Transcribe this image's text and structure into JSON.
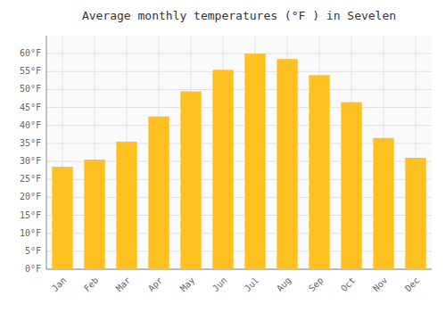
{
  "chart_data": {
    "type": "bar",
    "title": "Average monthly temperatures (°F ) in Sevelen",
    "categories": [
      "Jan",
      "Feb",
      "Mar",
      "Apr",
      "May",
      "Jun",
      "Jul",
      "Aug",
      "Sep",
      "Oct",
      "Nov",
      "Dec"
    ],
    "values": [
      28.5,
      30.5,
      35.5,
      42.5,
      49.5,
      55.5,
      60.0,
      58.5,
      54.0,
      46.5,
      36.5,
      31.0
    ],
    "color": "#FFC020",
    "ylim": [
      0,
      65
    ],
    "yticks": [
      {
        "value": 0,
        "label": "0°F"
      },
      {
        "value": 5,
        "label": "5°F"
      },
      {
        "value": 10,
        "label": "10°F"
      },
      {
        "value": 15,
        "label": "15°F"
      },
      {
        "value": 20,
        "label": "20°F"
      },
      {
        "value": 25,
        "label": "25°F"
      },
      {
        "value": 30,
        "label": "30°F"
      },
      {
        "value": 35,
        "label": "35°F"
      },
      {
        "value": 40,
        "label": "40°F"
      },
      {
        "value": 45,
        "label": "45°F"
      },
      {
        "value": 50,
        "label": "50°F"
      },
      {
        "value": 55,
        "label": "55°F"
      },
      {
        "value": 60,
        "label": "60°F"
      }
    ],
    "grid": true
  }
}
